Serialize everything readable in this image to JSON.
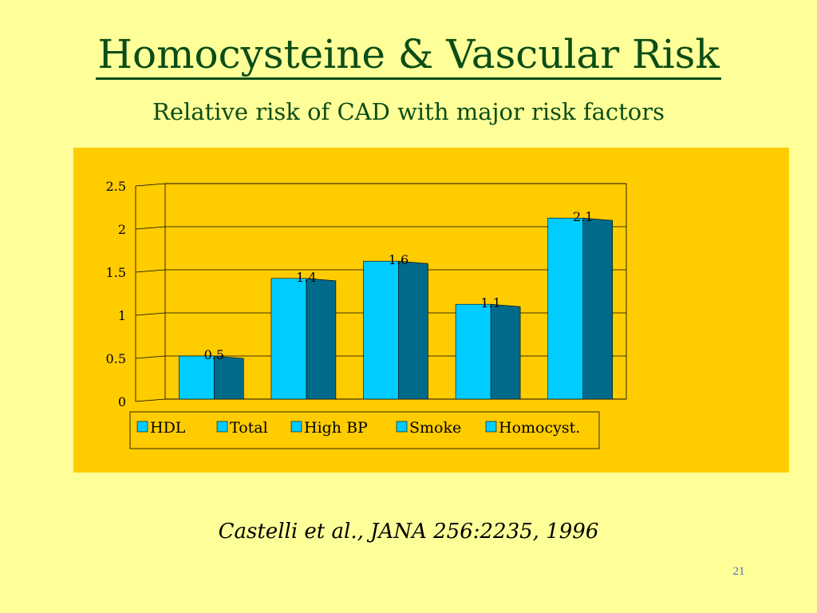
{
  "slide": {
    "title": "Homocysteine & Vascular Risk",
    "subtitle": "Relative risk of CAD with major risk factors",
    "citation": "Castelli et al., JANA 256:2235, 1996",
    "slide_number": "21"
  },
  "colors": {
    "background": "#ffff99",
    "title": "#0b4d16",
    "panel": "#ffcc00",
    "bar_front": "#00ccff",
    "bar_side": "#006a8a",
    "slide_number": "#4f6fbf"
  },
  "chart_data": {
    "type": "bar",
    "categories": [
      "HDL",
      "Total",
      "High BP",
      "Smoke",
      "Homocyst."
    ],
    "values": [
      0.5,
      1.4,
      1.6,
      1.1,
      2.1
    ],
    "data_labels": [
      "0.5",
      "1.4",
      "1.6",
      "1.1",
      "2.1"
    ],
    "legend": [
      "HDL",
      "Total",
      "High BP",
      "Smoke",
      "Homocyst."
    ],
    "legend_position": "bottom",
    "ylim": [
      0,
      2.5
    ],
    "yticks": [
      0,
      0.5,
      1,
      1.5,
      2,
      2.5
    ],
    "ytick_labels": [
      "0",
      "0.5",
      "1",
      "1.5",
      "2",
      "2.5"
    ],
    "grid": true,
    "style": "3d-column",
    "title": "",
    "xlabel": "",
    "ylabel": ""
  }
}
